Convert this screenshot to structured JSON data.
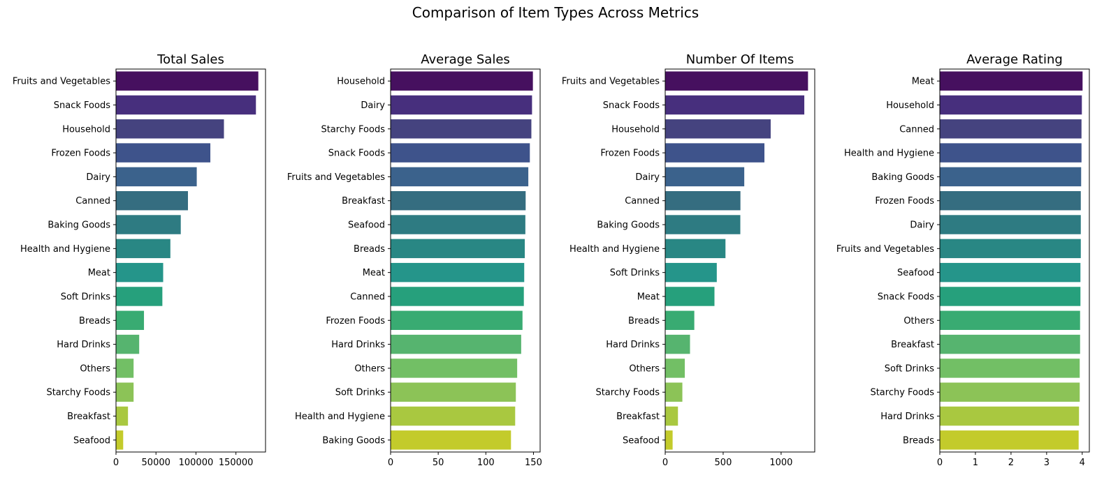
{
  "figure": {
    "title": "Comparison of Item Types Across Metrics"
  },
  "chart_data": [
    {
      "type": "bar",
      "orientation": "horizontal",
      "title": "Total Sales",
      "xlabel": "",
      "ylabel": "",
      "xlim": [
        0,
        187000
      ],
      "xticks": [
        0,
        50000,
        100000,
        150000
      ],
      "xtick_labels": [
        "0",
        "50000",
        "100000",
        "150000"
      ],
      "categories": [
        "Fruits and Vegetables",
        "Snack Foods",
        "Household",
        "Frozen Foods",
        "Dairy",
        "Canned",
        "Baking Goods",
        "Health and Hygiene",
        "Meat",
        "Soft Drinks",
        "Breads",
        "Hard Drinks",
        "Others",
        "Starchy Foods",
        "Breakfast",
        "Seafood"
      ],
      "values": [
        178000,
        175000,
        135000,
        118000,
        101000,
        90000,
        81000,
        68000,
        59000,
        58000,
        35000,
        29000,
        22000,
        22000,
        15000,
        9000
      ],
      "palette": "viridis",
      "grid": false,
      "legend": "none"
    },
    {
      "type": "bar",
      "orientation": "horizontal",
      "title": "Average Sales",
      "xlabel": "",
      "ylabel": "",
      "xlim": [
        0,
        157
      ],
      "xticks": [
        0,
        50,
        100,
        150
      ],
      "xtick_labels": [
        "0",
        "50",
        "100",
        "150"
      ],
      "categories": [
        "Household",
        "Dairy",
        "Starchy Foods",
        "Snack Foods",
        "Fruits and Vegetables",
        "Breakfast",
        "Seafood",
        "Breads",
        "Meat",
        "Canned",
        "Frozen Foods",
        "Hard Drinks",
        "Others",
        "Soft Drinks",
        "Health and Hygiene",
        "Baking Goods"
      ],
      "values": [
        149.4,
        148.5,
        147.8,
        146.2,
        144.6,
        141.8,
        141.5,
        140.9,
        140.3,
        139.9,
        138.5,
        137.1,
        132.9,
        131.5,
        130.8,
        126.4
      ],
      "palette": "viridis",
      "grid": false,
      "legend": "none"
    },
    {
      "type": "bar",
      "orientation": "horizontal",
      "title": "Number Of Items",
      "xlabel": "",
      "ylabel": "",
      "xlim": [
        0,
        1290
      ],
      "xticks": [
        0,
        500,
        1000
      ],
      "xtick_labels": [
        "0",
        "500",
        "1000"
      ],
      "categories": [
        "Fruits and Vegetables",
        "Snack Foods",
        "Household",
        "Frozen Foods",
        "Dairy",
        "Canned",
        "Baking Goods",
        "Health and Hygiene",
        "Soft Drinks",
        "Meat",
        "Breads",
        "Hard Drinks",
        "Others",
        "Starchy Foods",
        "Breakfast",
        "Seafood"
      ],
      "values": [
        1232,
        1200,
        910,
        856,
        682,
        649,
        648,
        520,
        445,
        425,
        251,
        214,
        169,
        148,
        110,
        64
      ],
      "palette": "viridis",
      "grid": false,
      "legend": "none"
    },
    {
      "type": "bar",
      "orientation": "horizontal",
      "title": "Average Rating",
      "xlabel": "",
      "ylabel": "",
      "xlim": [
        0,
        4.2
      ],
      "xticks": [
        0,
        1,
        2,
        3,
        4
      ],
      "xtick_labels": [
        "0",
        "1",
        "2",
        "3",
        "4"
      ],
      "categories": [
        "Meat",
        "Household",
        "Canned",
        "Health and Hygiene",
        "Baking Goods",
        "Frozen Foods",
        "Dairy",
        "Fruits and Vegetables",
        "Seafood",
        "Snack Foods",
        "Others",
        "Breakfast",
        "Soft Drinks",
        "Starchy Foods",
        "Hard Drinks",
        "Breads"
      ],
      "values": [
        4.01,
        3.99,
        3.98,
        3.98,
        3.97,
        3.96,
        3.96,
        3.96,
        3.95,
        3.95,
        3.94,
        3.94,
        3.93,
        3.93,
        3.91,
        3.9
      ],
      "palette": "viridis",
      "grid": false,
      "legend": "none"
    }
  ],
  "colors": {
    "bars": [
      "#46105f",
      "#472f7d",
      "#45437f",
      "#3e538b",
      "#3b628c",
      "#356d80",
      "#2e7b82",
      "#298784",
      "#25958a",
      "#26a07c",
      "#39ab72",
      "#56b46f",
      "#72bf65",
      "#8cc357",
      "#a9c840",
      "#c3cb2b"
    ],
    "axes": "#000000",
    "text": "#000000"
  }
}
